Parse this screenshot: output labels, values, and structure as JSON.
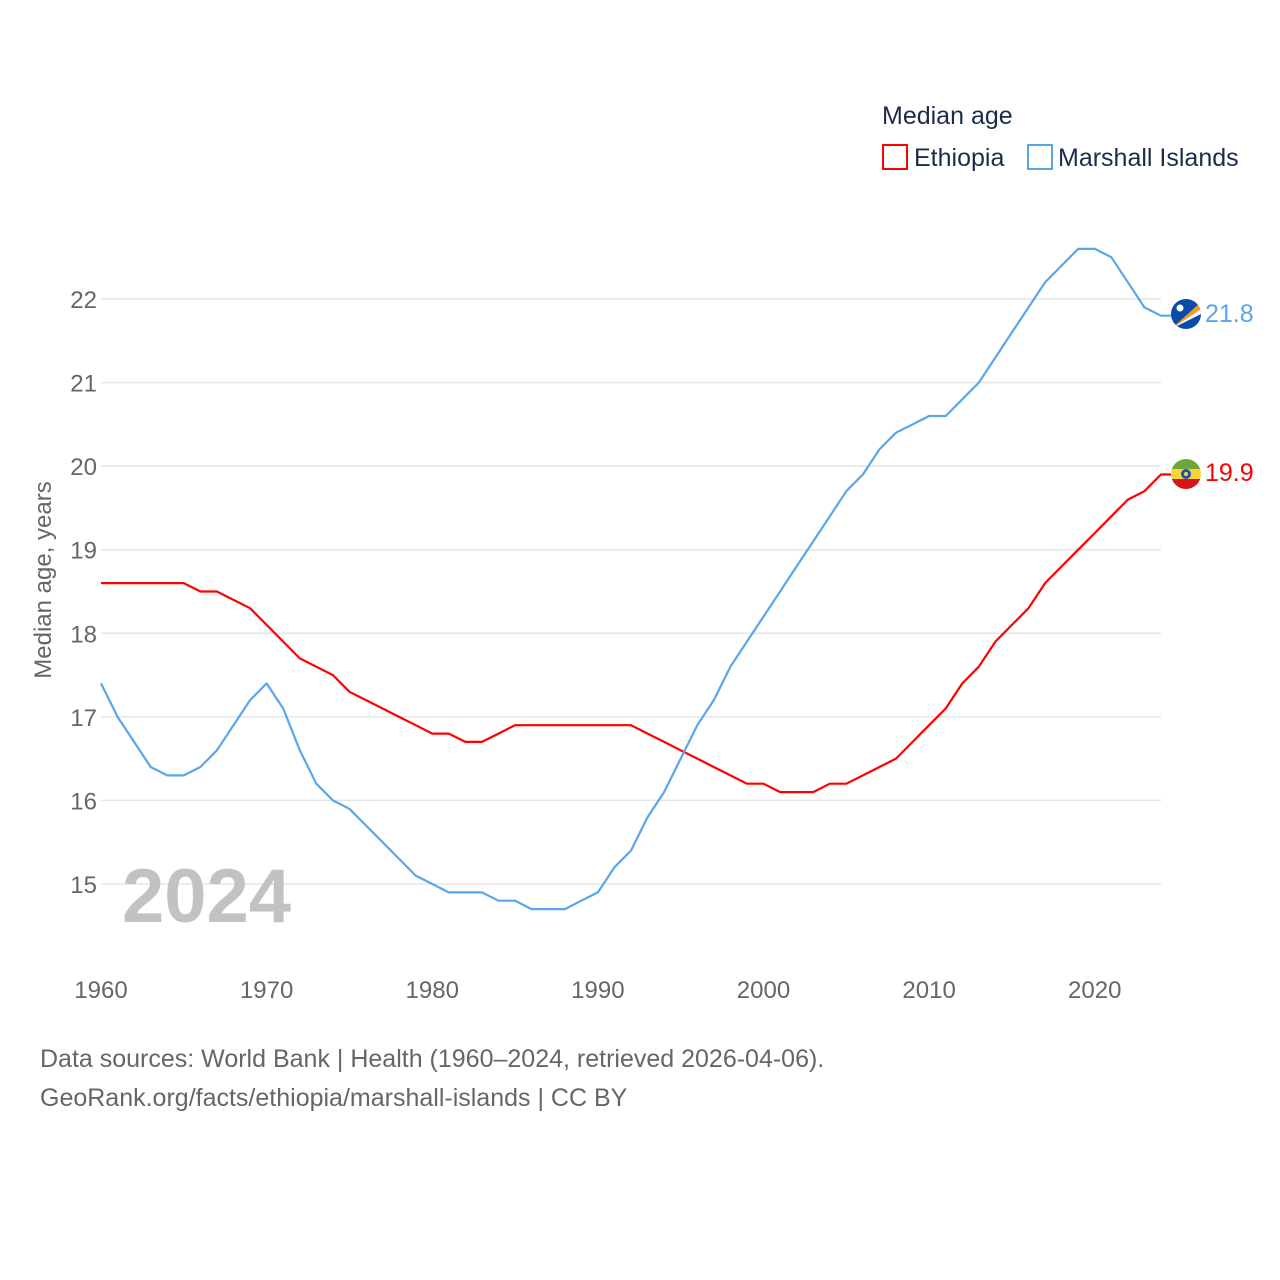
{
  "chart_data": {
    "type": "line",
    "title": "Median age",
    "xlabel": "",
    "ylabel": "Median age, years",
    "year_watermark": "2024",
    "xlim": [
      1960,
      2024
    ],
    "ylim": [
      14.2,
      22.8
    ],
    "x_ticks": [
      1960,
      1970,
      1980,
      1990,
      2000,
      2010,
      2020
    ],
    "y_ticks": [
      15,
      16,
      17,
      18,
      19,
      20,
      21,
      22
    ],
    "grid": true,
    "legend_position": "top-right",
    "x": [
      1960,
      1961,
      1962,
      1963,
      1964,
      1965,
      1966,
      1967,
      1968,
      1969,
      1970,
      1971,
      1972,
      1973,
      1974,
      1975,
      1976,
      1977,
      1978,
      1979,
      1980,
      1981,
      1982,
      1983,
      1984,
      1985,
      1986,
      1987,
      1988,
      1989,
      1990,
      1991,
      1992,
      1993,
      1994,
      1995,
      1996,
      1997,
      1998,
      1999,
      2000,
      2001,
      2002,
      2003,
      2004,
      2005,
      2006,
      2007,
      2008,
      2009,
      2010,
      2011,
      2012,
      2013,
      2014,
      2015,
      2016,
      2017,
      2018,
      2019,
      2020,
      2021,
      2022,
      2023,
      2024
    ],
    "series": [
      {
        "name": "Ethiopia",
        "color": "#ff0000",
        "end_label": "19.9",
        "flag": "ethiopia-flag",
        "values": [
          18.6,
          18.6,
          18.6,
          18.6,
          18.6,
          18.6,
          18.5,
          18.5,
          18.4,
          18.3,
          18.1,
          17.9,
          17.7,
          17.6,
          17.5,
          17.3,
          17.2,
          17.1,
          17.0,
          16.9,
          16.8,
          16.8,
          16.7,
          16.7,
          16.8,
          16.9,
          16.9,
          16.9,
          16.9,
          16.9,
          16.9,
          16.9,
          16.9,
          16.8,
          16.7,
          16.6,
          16.5,
          16.4,
          16.3,
          16.2,
          16.2,
          16.1,
          16.1,
          16.1,
          16.2,
          16.2,
          16.3,
          16.4,
          16.5,
          16.7,
          16.9,
          17.1,
          17.4,
          17.6,
          17.9,
          18.1,
          18.3,
          18.6,
          18.8,
          19.0,
          19.2,
          19.4,
          19.6,
          19.7,
          19.9
        ]
      },
      {
        "name": "Marshall Islands",
        "color": "#5aa5ec",
        "end_label": "21.8",
        "flag": "marshall-islands-flag",
        "values": [
          17.4,
          17.0,
          16.7,
          16.4,
          16.3,
          16.3,
          16.4,
          16.6,
          16.9,
          17.2,
          17.4,
          17.1,
          16.6,
          16.2,
          16.0,
          15.9,
          15.7,
          15.5,
          15.3,
          15.1,
          15.0,
          14.9,
          14.9,
          14.9,
          14.8,
          14.8,
          14.7,
          14.7,
          14.7,
          14.8,
          14.9,
          15.2,
          15.4,
          15.8,
          16.1,
          16.5,
          16.9,
          17.2,
          17.6,
          17.9,
          18.2,
          18.5,
          18.8,
          19.1,
          19.4,
          19.7,
          19.9,
          20.2,
          20.4,
          20.5,
          20.6,
          20.6,
          20.8,
          21.0,
          21.3,
          21.6,
          21.9,
          22.2,
          22.4,
          22.6,
          22.6,
          22.5,
          22.2,
          21.9,
          21.8
        ]
      }
    ]
  },
  "footer": {
    "line1": "Data sources: World Bank | Health (1960–2024, retrieved 2026-04-06).",
    "line2": "GeoRank.org/facts/ethiopia/marshall-islands | CC BY"
  }
}
